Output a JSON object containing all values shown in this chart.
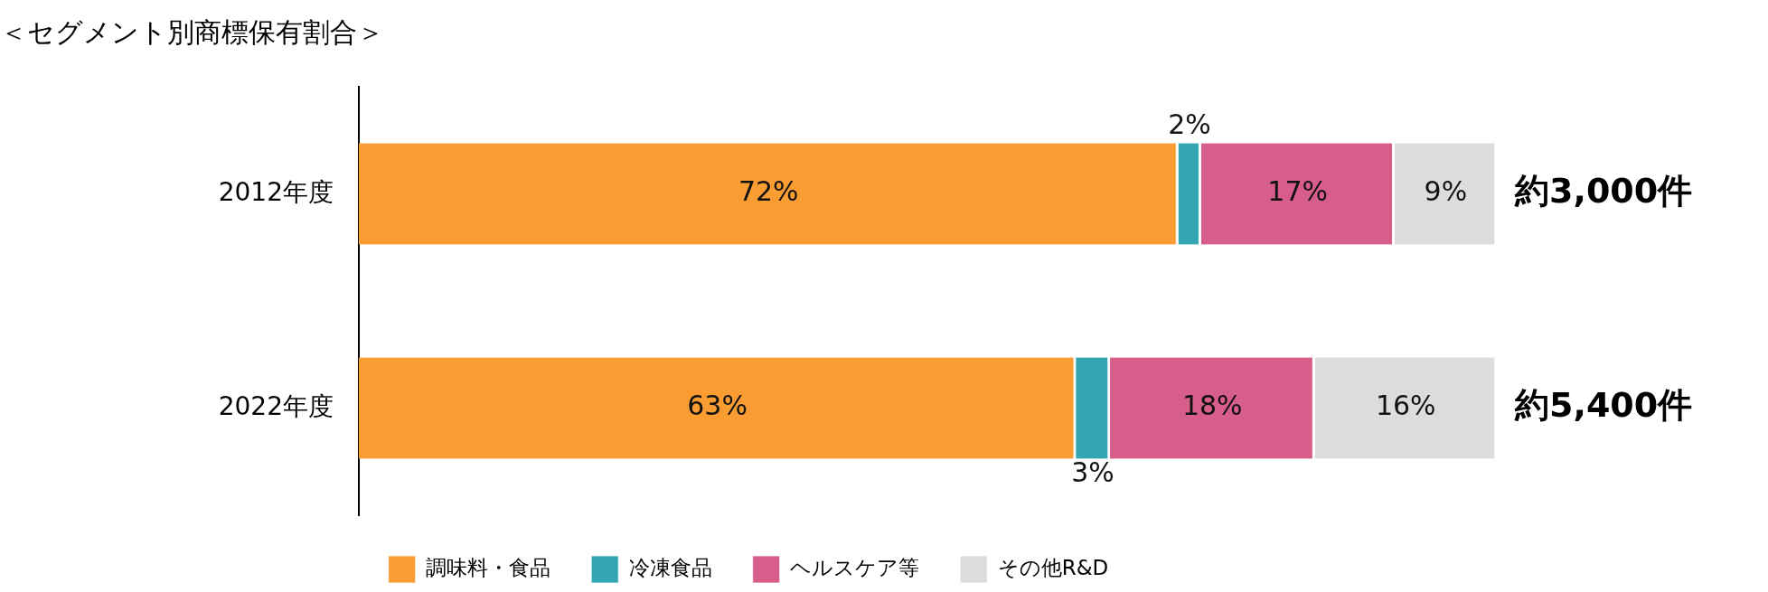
{
  "chart_data": {
    "type": "bar",
    "title": "＜セグメント別商標保有割合＞",
    "orientation": "horizontal",
    "stacked": true,
    "categories": [
      "2012年度",
      "2022年度"
    ],
    "series": [
      {
        "name": "調味料・食品",
        "color": "#f99d33",
        "values": [
          72,
          63
        ],
        "value_labels": [
          "72%",
          "63%"
        ]
      },
      {
        "name": "冷凍食品",
        "color": "#33a6b2",
        "values": [
          2,
          3
        ],
        "value_labels": [
          "2%",
          "3%"
        ]
      },
      {
        "name": "ヘルスケア等",
        "color": "#d75d8a",
        "values": [
          17,
          18
        ],
        "value_labels": [
          "17%",
          "18%"
        ]
      },
      {
        "name": "その他R&D",
        "color": "#dcdcdc",
        "values": [
          9,
          16
        ],
        "value_labels": [
          "9%",
          "16%"
        ]
      }
    ],
    "totals": [
      "約3,000件",
      "約5,400件"
    ],
    "legend": "bottom"
  }
}
